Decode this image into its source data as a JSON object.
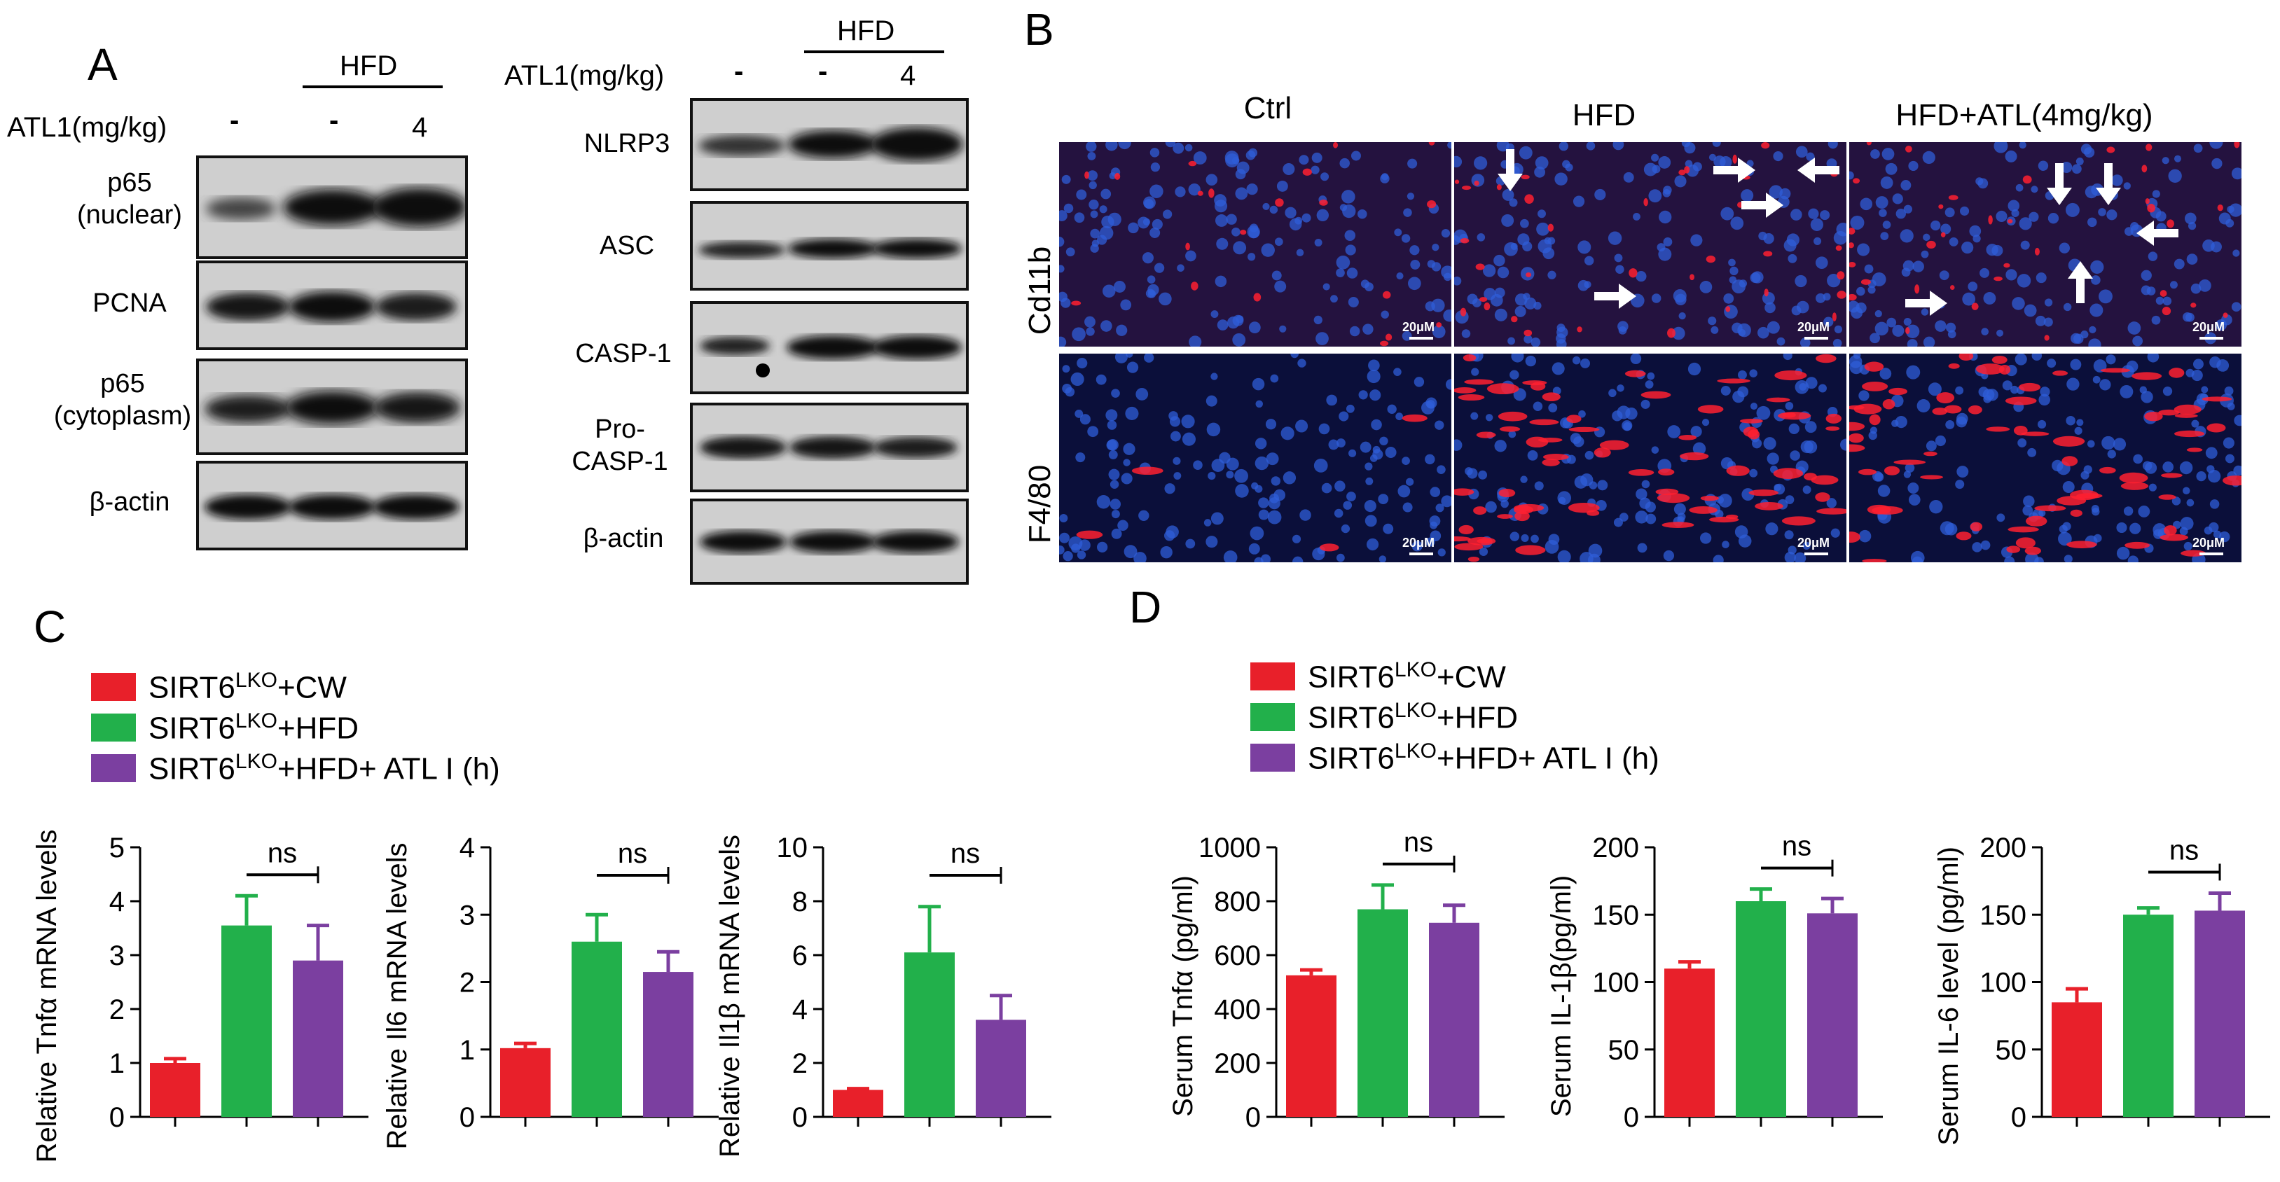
{
  "panel_a": {
    "letter": "A",
    "left": {
      "hfd_label": "HFD",
      "atl_label": "ATL1(mg/kg)",
      "lane_marks": [
        "-",
        "-",
        "4"
      ],
      "rows": [
        "p65\n(nuclear)",
        "PCNA",
        "p65\n(cytoplasm)",
        "β-actin"
      ]
    },
    "right": {
      "hfd_label": "HFD",
      "atl_label": "ATL1(mg/kg)",
      "lane_marks": [
        "-",
        "-",
        "4"
      ],
      "rows": [
        "NLRP3",
        "ASC",
        "CASP-1",
        "Pro-\nCASP-1",
        "β-actin"
      ]
    }
  },
  "panel_b": {
    "letter": "B",
    "columns": [
      "Ctrl",
      "HFD",
      "HFD+ATL(4mg/kg)"
    ],
    "rows": [
      "Cd11b",
      "F4/80"
    ],
    "scale_bar": "20μM"
  },
  "panel_c": {
    "letter": "C",
    "legend": [
      {
        "base": "SIRT6",
        "sup": "LKO",
        "suffix": "+CW",
        "color": "#e8202a"
      },
      {
        "base": "SIRT6",
        "sup": "LKO",
        "suffix": "+HFD",
        "color": "#22b04b"
      },
      {
        "base": "SIRT6",
        "sup": "LKO",
        "suffix": "+HFD+ ATL I (h)",
        "color": "#7b3fa0"
      }
    ]
  },
  "panel_d": {
    "letter": "D",
    "legend": [
      {
        "base": "SIRT6",
        "sup": "LKO",
        "suffix": "+CW",
        "color": "#e8202a"
      },
      {
        "base": "SIRT6",
        "sup": "LKO",
        "suffix": "+HFD",
        "color": "#22b04b"
      },
      {
        "base": "SIRT6",
        "sup": "LKO",
        "suffix": "+HFD+ ATL I (h)",
        "color": "#7b3fa0"
      }
    ]
  },
  "chart_data": [
    {
      "type": "bar",
      "id": "c1",
      "ylabel": "Relative Tnfα mRNA levels",
      "ylim": [
        0,
        5
      ],
      "yticks": [
        0,
        1,
        2,
        3,
        4,
        5
      ],
      "values": [
        1.0,
        3.55,
        2.9
      ],
      "errors": [
        0.08,
        0.55,
        0.65
      ],
      "sig": "ns",
      "sig_between": [
        1,
        2
      ]
    },
    {
      "type": "bar",
      "id": "c2",
      "ylabel": "Relative Il6 mRNA levels",
      "ylim": [
        0,
        4
      ],
      "yticks": [
        0,
        1,
        2,
        3,
        4
      ],
      "values": [
        1.02,
        2.6,
        2.15
      ],
      "errors": [
        0.07,
        0.4,
        0.3
      ],
      "sig": "ns",
      "sig_between": [
        1,
        2
      ]
    },
    {
      "type": "bar",
      "id": "c3",
      "ylabel": "Relative Il1β mRNA levels",
      "ylim": [
        0,
        10
      ],
      "yticks": [
        0,
        2,
        4,
        6,
        8,
        10
      ],
      "values": [
        1.0,
        6.1,
        3.6
      ],
      "errors": [
        0.05,
        1.7,
        0.9
      ],
      "sig": "ns",
      "sig_between": [
        1,
        2
      ]
    },
    {
      "type": "bar",
      "id": "d1",
      "ylabel": "Serum Tnfα (pg/ml)",
      "ylim": [
        0,
        1000
      ],
      "yticks": [
        0,
        200,
        400,
        600,
        800,
        1000
      ],
      "values": [
        525,
        770,
        720
      ],
      "errors": [
        20,
        90,
        65
      ],
      "sig": "ns",
      "sig_between": [
        1,
        2
      ]
    },
    {
      "type": "bar",
      "id": "d2",
      "ylabel": "Serum IL-1β(pg/ml)",
      "ylim": [
        0,
        200
      ],
      "yticks": [
        0,
        50,
        100,
        150,
        200
      ],
      "values": [
        110,
        160,
        151
      ],
      "errors": [
        5,
        9,
        11
      ],
      "sig": "ns",
      "sig_between": [
        1,
        2
      ]
    },
    {
      "type": "bar",
      "id": "d3",
      "ylabel": "Serum IL-6 level  (pg/ml)",
      "ylim": [
        0,
        200
      ],
      "yticks": [
        0,
        50,
        100,
        150,
        200
      ],
      "values": [
        85,
        150,
        153
      ],
      "errors": [
        10,
        5,
        13
      ],
      "sig": "ns",
      "sig_between": [
        1,
        2
      ]
    }
  ],
  "colors": {
    "cw": "#e8202a",
    "hfd": "#22b04b",
    "atl": "#7b3fa0"
  }
}
